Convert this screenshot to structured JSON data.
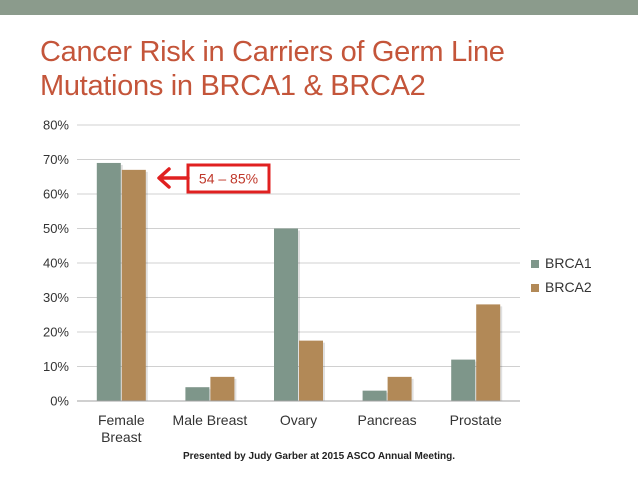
{
  "slide": {
    "title_line1": "Cancer Risk in Carriers of Germ Line",
    "title_line2": "Mutations in BRCA1 & BRCA2",
    "credit": "Presented by Judy Garber at 2015 ASCO Annual Meeting.",
    "colors": {
      "accent": "#c4553a",
      "top_bar": "#8b9b8c"
    }
  },
  "callout": {
    "text": "54 – 85%",
    "color": "#e02020"
  },
  "chart_data": {
    "type": "bar",
    "categories": [
      [
        "Female",
        "Breast"
      ],
      [
        "Male Breast"
      ],
      [
        "Ovary"
      ],
      [
        "Pancreas"
      ],
      [
        "Prostate"
      ]
    ],
    "series": [
      {
        "name": "BRCA1",
        "values": [
          69,
          4,
          50,
          3,
          12
        ],
        "color": "#7e968a"
      },
      {
        "name": "BRCA2",
        "values": [
          67,
          7,
          17.5,
          7,
          28
        ],
        "color": "#b28957"
      }
    ],
    "ylim": [
      0,
      80
    ],
    "yticks": [
      0,
      10,
      20,
      30,
      40,
      50,
      60,
      70,
      80
    ],
    "ytick_labels": [
      "0%",
      "10%",
      "20%",
      "30%",
      "40%",
      "50%",
      "60%",
      "70%",
      "80%"
    ],
    "grid": true,
    "legend": "right"
  }
}
